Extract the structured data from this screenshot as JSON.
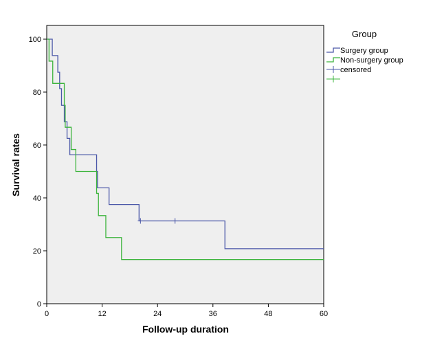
{
  "chart_data": {
    "type": "line",
    "subtype": "kaplan-meier-step",
    "xlabel": "Follow-up duration",
    "ylabel": "Survival rates",
    "xlim": [
      0,
      60
    ],
    "ylim": [
      0,
      105
    ],
    "xticks": [
      0,
      12,
      24,
      36,
      48,
      60
    ],
    "yticks": [
      0,
      20,
      40,
      60,
      80,
      100
    ],
    "xtick_labels": [
      "0",
      "12",
      "24",
      "36",
      "48",
      "60"
    ],
    "ytick_labels": [
      "0",
      "20",
      "40",
      "60",
      "80",
      "100"
    ],
    "background": "#efefef",
    "grid": false,
    "legend": {
      "title": "Group",
      "position": "right",
      "entries": [
        {
          "label": "Surgery group",
          "color": "#4a57a8",
          "kind": "step"
        },
        {
          "label": "Non-surgery group",
          "color": "#3cb43c",
          "kind": "step"
        },
        {
          "label": "censored",
          "color": "#4a57a8",
          "kind": "censor"
        },
        {
          "label": "",
          "color": "#3cb43c",
          "kind": "censor"
        }
      ]
    },
    "series": [
      {
        "name": "Surgery group",
        "color": "#4a57a8",
        "steps": [
          [
            0,
            100
          ],
          [
            1.2,
            93.8
          ],
          [
            2.4,
            87.5
          ],
          [
            2.8,
            81.3
          ],
          [
            3.2,
            75
          ],
          [
            3.8,
            68.8
          ],
          [
            4.4,
            62.5
          ],
          [
            5,
            56.3
          ],
          [
            10.8,
            50
          ],
          [
            11,
            43.8
          ],
          [
            13.5,
            37.5
          ],
          [
            20,
            31.3
          ],
          [
            38.6,
            20.8
          ],
          [
            60,
            20.8
          ]
        ],
        "censored": [
          [
            20.3,
            31.3
          ],
          [
            27.8,
            31.3
          ]
        ]
      },
      {
        "name": "Non-surgery group",
        "color": "#3cb43c",
        "steps": [
          [
            0,
            100
          ],
          [
            0.5,
            91.7
          ],
          [
            1.3,
            83.3
          ],
          [
            3.8,
            75
          ],
          [
            4,
            66.7
          ],
          [
            5.3,
            58.3
          ],
          [
            6.3,
            50
          ],
          [
            10.8,
            41.7
          ],
          [
            11.2,
            33.3
          ],
          [
            12.8,
            25
          ],
          [
            16.2,
            16.7
          ],
          [
            60,
            16.7
          ]
        ],
        "censored": []
      }
    ]
  }
}
